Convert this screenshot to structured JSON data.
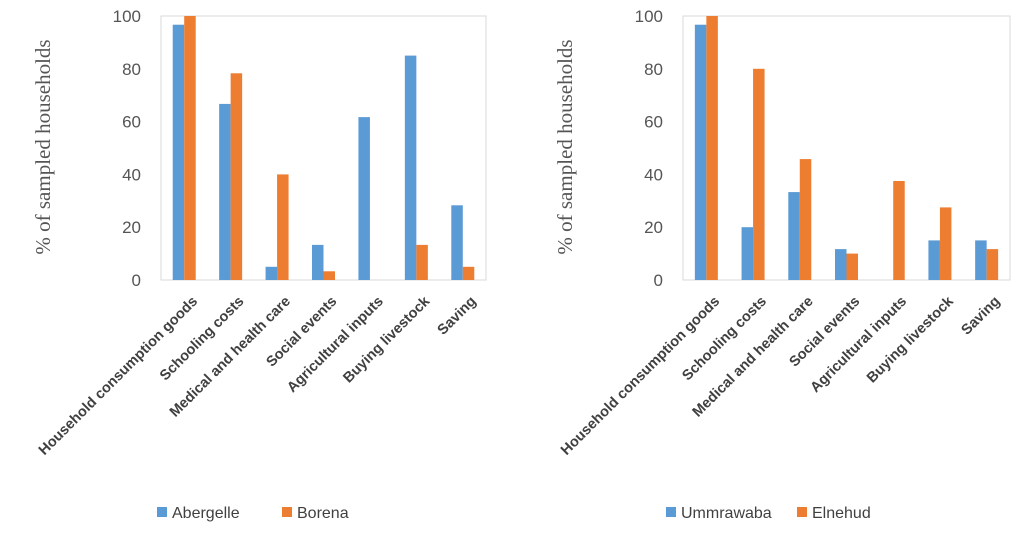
{
  "chart_data": [
    {
      "type": "bar",
      "ylabel": "% of sampled households",
      "ylim": [
        0,
        100
      ],
      "yticks": [
        0,
        20,
        40,
        60,
        80,
        100
      ],
      "categories": [
        "Household consumption goods",
        "Schooling costs",
        "Medical and health care",
        "Social events",
        "Agricultural inputs",
        "Buying livestock",
        "Saving"
      ],
      "series": [
        {
          "name": "Abergelle",
          "color": "#5B9BD5",
          "values": [
            96.7,
            66.7,
            5,
            13.3,
            61.7,
            85,
            28.3
          ]
        },
        {
          "name": "Borena",
          "color": "#ED7D31",
          "values": [
            100,
            78.3,
            40,
            3.3,
            0,
            13.3,
            5
          ]
        }
      ],
      "legend": "bottom"
    },
    {
      "type": "bar",
      "ylabel": "% of  sampled households",
      "ylim": [
        0,
        100
      ],
      "yticks": [
        0,
        20,
        40,
        60,
        80,
        100
      ],
      "categories": [
        "Household consumption goods",
        "Schooling costs",
        "Medical and health care",
        "Social events",
        "Agricultural inputs",
        "Buying livestock",
        "Saving"
      ],
      "series": [
        {
          "name": "Ummrawaba",
          "color": "#5B9BD5",
          "values": [
            96.7,
            20,
            33.3,
            11.7,
            0,
            15,
            15
          ]
        },
        {
          "name": "Elnehud",
          "color": "#ED7D31",
          "values": [
            100,
            80,
            45.8,
            10,
            37.5,
            27.5,
            11.7
          ]
        }
      ],
      "legend": "bottom"
    }
  ]
}
